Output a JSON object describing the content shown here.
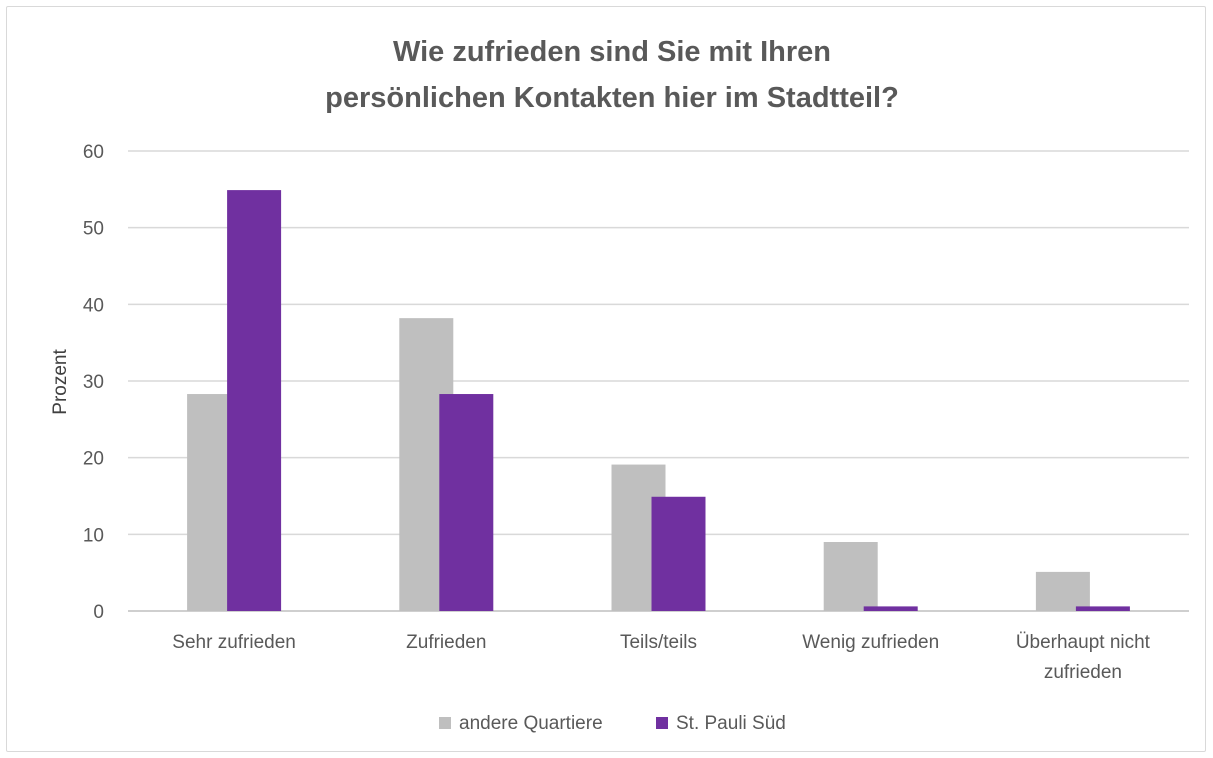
{
  "chart_data": {
    "type": "bar",
    "title_lines": [
      "Wie zufrieden sind Sie mit Ihren",
      "persönlichen Kontakten hier im Stadtteil?"
    ],
    "ylabel": "Prozent",
    "xlabel": "",
    "ylim": [
      0,
      60
    ],
    "yticks": [
      0,
      10,
      20,
      30,
      40,
      50,
      60
    ],
    "grid": true,
    "legend_position": "bottom",
    "categories": [
      [
        "Sehr zufrieden"
      ],
      [
        "Zufrieden"
      ],
      [
        "Teils/teils"
      ],
      [
        "Wenig zufrieden"
      ],
      [
        "Überhaupt nicht",
        "zufrieden"
      ]
    ],
    "series": [
      {
        "name": "andere Quartiere",
        "color": "#bfbfbf",
        "values": [
          28.3,
          38.2,
          19.1,
          9.0,
          5.1
        ]
      },
      {
        "name": "St. Pauli Süd",
        "color": "#7030a0",
        "values": [
          54.9,
          28.3,
          14.9,
          0.6,
          0.6
        ]
      }
    ]
  }
}
